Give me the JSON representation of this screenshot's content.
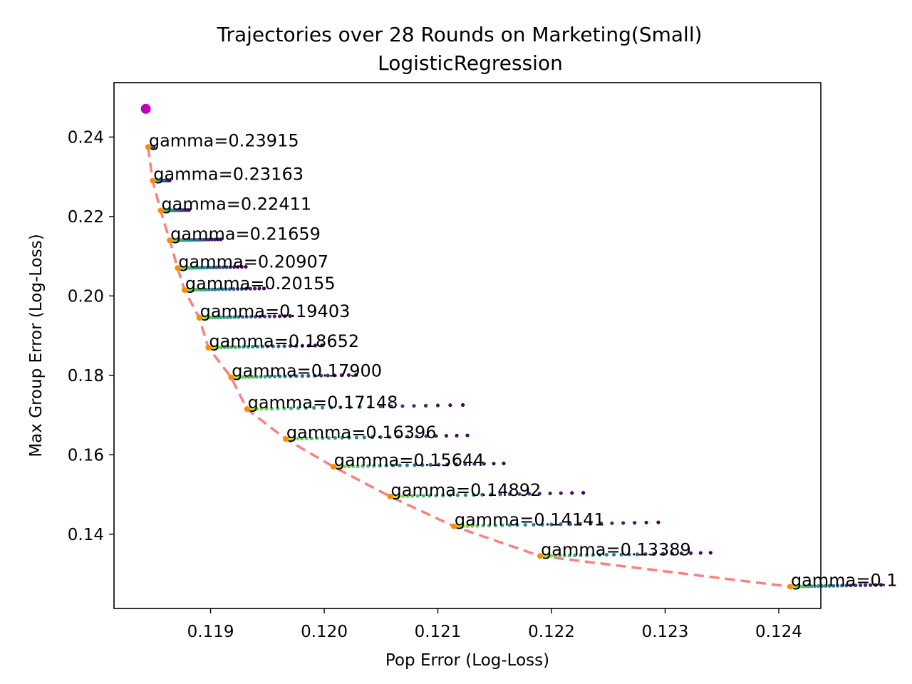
{
  "chart_data": {
    "type": "scatter",
    "title": "Trajectories over 28 Rounds on Marketing(Small)",
    "subtitle": "LogisticRegression",
    "xlabel": "Pop Error (Log-Loss)",
    "ylabel": "Max Group Error (Log-Loss)",
    "xlim": [
      0.11815,
      0.12437
    ],
    "ylim": [
      0.1213,
      0.2537
    ],
    "xticks": [
      0.119,
      0.12,
      0.121,
      0.122,
      0.123,
      0.124
    ],
    "yticks": [
      0.14,
      0.16,
      0.18,
      0.2,
      0.22,
      0.24
    ],
    "xtick_labels": [
      "0.119",
      "0.120",
      "0.121",
      "0.122",
      "0.123",
      "0.124"
    ],
    "ytick_labels": [
      "0.14",
      "0.16",
      "0.18",
      "0.20",
      "0.22",
      "0.24"
    ],
    "grid": false,
    "colormap": "viridis",
    "start_point": {
      "x": 0.11843,
      "y": 0.2471,
      "color": "#bf00bf"
    },
    "pareto_color": "#ff7f7f",
    "final_point_color": "#ff8c00",
    "trajectories": [
      {
        "label": "gamma=0.23915",
        "x": 0.11845,
        "y": 0.2375,
        "spread": 5e-05
      },
      {
        "label": "gamma=0.23163",
        "x": 0.11849,
        "y": 0.229,
        "spread": 0.00015
      },
      {
        "label": "gamma=0.22411",
        "x": 0.11856,
        "y": 0.2215,
        "spread": 0.00025
      },
      {
        "label": "gamma=0.21659",
        "x": 0.11864,
        "y": 0.214,
        "spread": 0.00045
      },
      {
        "label": "gamma=0.20907",
        "x": 0.11871,
        "y": 0.207,
        "spread": 0.0006
      },
      {
        "label": "gamma=0.20155",
        "x": 0.11877,
        "y": 0.2015,
        "spread": 0.0007
      },
      {
        "label": "gamma=0.19403",
        "x": 0.1189,
        "y": 0.1945,
        "spread": 0.0008
      },
      {
        "label": "gamma=0.18652",
        "x": 0.11898,
        "y": 0.187,
        "spread": 0.001
      },
      {
        "label": "gamma=0.17900",
        "x": 0.11918,
        "y": 0.1795,
        "spread": 0.0011
      },
      {
        "label": "gamma=0.17148",
        "x": 0.11932,
        "y": 0.1715,
        "spread": 0.0019
      },
      {
        "label": "gamma=0.16396",
        "x": 0.11966,
        "y": 0.164,
        "spread": 0.0016
      },
      {
        "label": "gamma=0.15644",
        "x": 0.12008,
        "y": 0.157,
        "spread": 0.0015
      },
      {
        "label": "gamma=0.14892",
        "x": 0.12058,
        "y": 0.1495,
        "spread": 0.0017
      },
      {
        "label": "gamma=0.14141",
        "x": 0.12114,
        "y": 0.142,
        "spread": 0.0018
      },
      {
        "label": "gamma=0.13389",
        "x": 0.1219,
        "y": 0.1345,
        "spread": 0.0015
      },
      {
        "label": "gamma=0.1",
        "x": 0.1241,
        "y": 0.1268,
        "spread": 0.0008
      }
    ]
  }
}
